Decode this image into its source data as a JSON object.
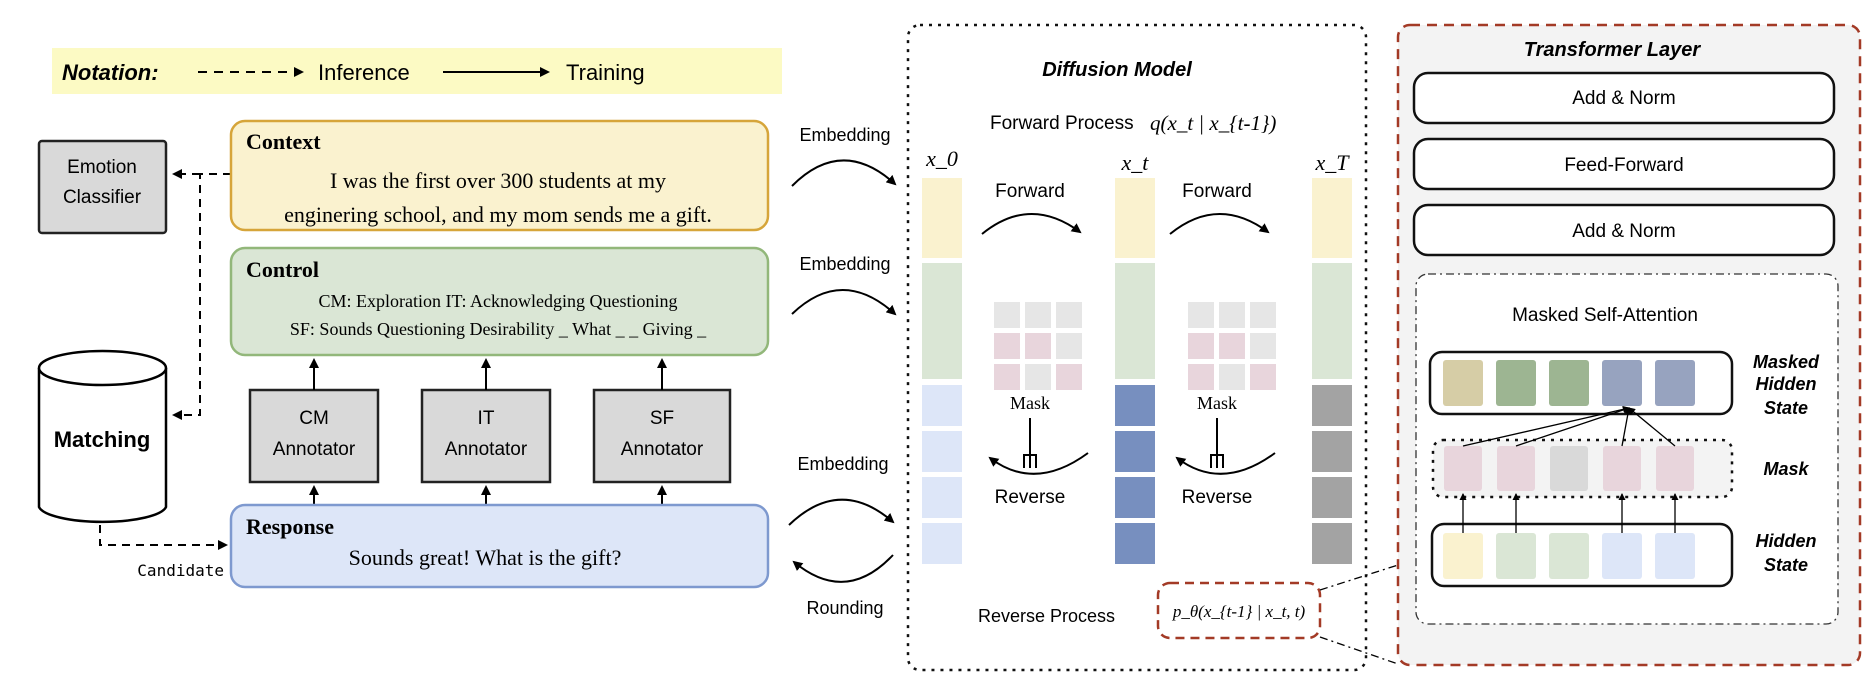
{
  "notation": {
    "label": "Notation:",
    "inference": "Inference",
    "training": "Training"
  },
  "emotion_classifier": {
    "line1": "Emotion",
    "line2": "Classifier"
  },
  "matching": "Matching",
  "candidate": "Candidate",
  "context": {
    "title": "Context",
    "line1": "I was the first over 300 students at my",
    "line2": "enginering school, and my mom sends me a gift."
  },
  "control": {
    "title": "Control",
    "line1": "CM: Exploration IT: Acknowledging  Questioning",
    "line2": "SF: Sounds Questioning Desirability  _ What _  _  Giving _"
  },
  "annotators": [
    {
      "line1": "CM",
      "line2": "Annotator"
    },
    {
      "line1": "IT",
      "line2": "Annotator"
    },
    {
      "line1": "SF",
      "line2": "Annotator"
    }
  ],
  "response": {
    "title": "Response",
    "text": "Sounds great! What is the gift?"
  },
  "links": {
    "embedding": "Embedding",
    "rounding": "Rounding"
  },
  "diffusion": {
    "title": "Diffusion Model",
    "forward_process": "Forward Process",
    "forward_formula": "q(x_t | x_{t-1})",
    "reverse_process": "Reverse Process",
    "reverse_formula": "p_θ(x_{t-1} | x_t, t)",
    "columns": [
      "x_0",
      "x_t",
      "x_T"
    ],
    "forward": "Forward",
    "reverse": "Reverse",
    "mask": "Mask"
  },
  "transformer": {
    "title": "Transformer Layer",
    "layers": [
      "Add & Norm",
      "Feed-Forward",
      "Add & Norm"
    ],
    "attention_title": "Masked Self-Attention",
    "masked_hidden_state": [
      "Masked",
      "Hidden",
      "State"
    ],
    "mask_label": "Mask",
    "hidden_state": [
      "Hidden",
      "State"
    ]
  },
  "colors": {
    "yellow": "#faf2cf",
    "green": "#dae6d5",
    "blue": "#dde6f8",
    "dark_blue": "#778fbf",
    "gray": "#a3a3a3",
    "pink": "#e8d5dc",
    "light_gray": "#e6e6e6",
    "accent_red": "#a33a26"
  }
}
